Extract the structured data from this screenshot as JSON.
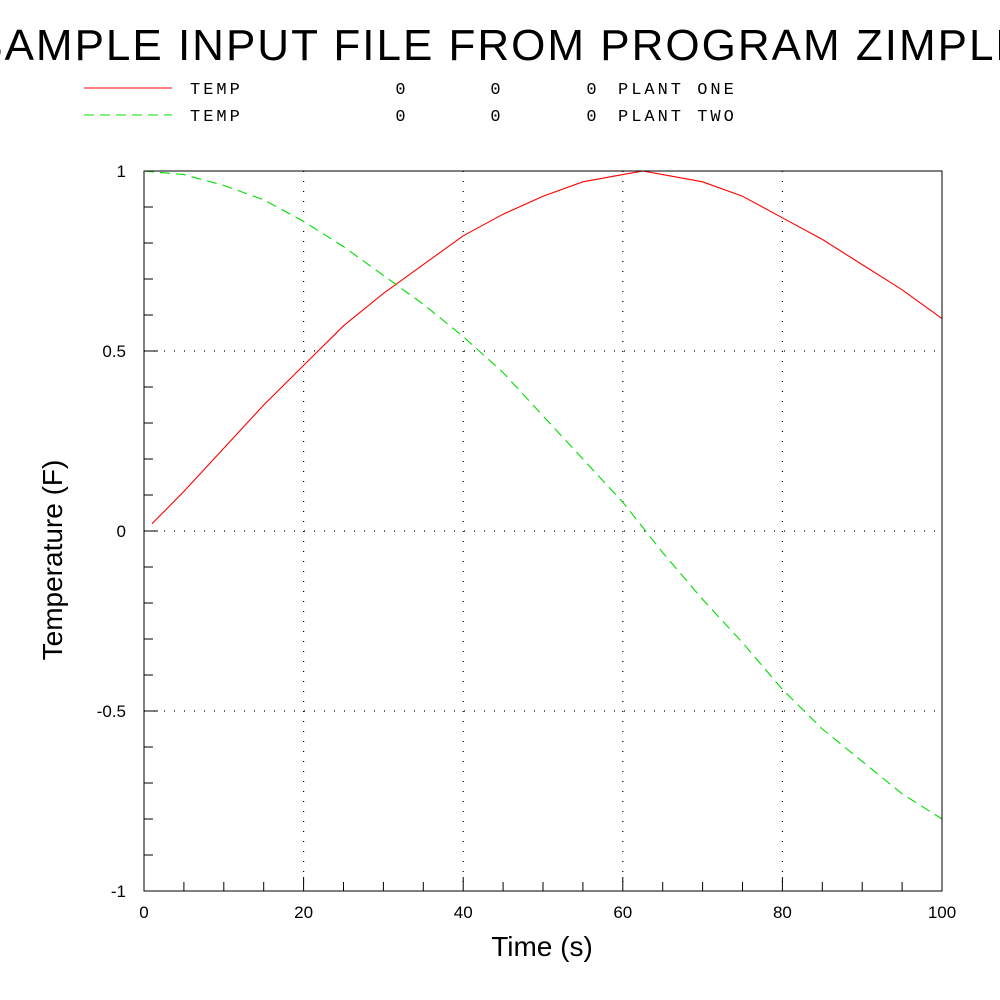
{
  "chart_data": {
    "type": "line",
    "title": "SAMPLE INPUT FILE FROM PROGRAM ZIMPLE",
    "xlabel": "Time  (s)",
    "ylabel": "Temperature  (F)",
    "xlim": [
      0,
      100
    ],
    "ylim": [
      -1,
      1
    ],
    "x_ticks": [
      "0",
      "20",
      "40",
      "60",
      "80",
      "100"
    ],
    "y_ticks": [
      "-1",
      "-0.5",
      "0",
      "0.5",
      "1"
    ],
    "grid": true,
    "legend_position": "top-left",
    "series": [
      {
        "name": "TEMP 0 0 0 PLANT ONE",
        "legend_cols": [
          "TEMP",
          "0",
          "0",
          "0",
          "PLANT ONE"
        ],
        "color": "#ff0000",
        "style": "solid",
        "x": [
          1,
          5,
          10,
          15,
          20,
          25,
          30,
          35,
          40,
          45,
          50,
          55,
          60,
          62.5,
          65,
          70,
          75,
          80,
          85,
          90,
          95,
          100
        ],
        "y": [
          0.02,
          0.11,
          0.23,
          0.35,
          0.46,
          0.57,
          0.66,
          0.74,
          0.82,
          0.88,
          0.93,
          0.97,
          0.99,
          1.0,
          0.99,
          0.97,
          0.93,
          0.87,
          0.81,
          0.74,
          0.67,
          0.59
        ]
      },
      {
        "name": "TEMP 0 0 0 PLANT TWO",
        "legend_cols": [
          "TEMP",
          "0",
          "0",
          "0",
          "PLANT TWO"
        ],
        "color": "#00dd00",
        "style": "dashed",
        "x": [
          0,
          5,
          10,
          15,
          20,
          25,
          30,
          35,
          40,
          45,
          50,
          55,
          60,
          65,
          70,
          75,
          80,
          85,
          90,
          95,
          100
        ],
        "y": [
          1.0,
          0.99,
          0.96,
          0.92,
          0.86,
          0.79,
          0.71,
          0.63,
          0.54,
          0.44,
          0.32,
          0.2,
          0.08,
          -0.06,
          -0.19,
          -0.31,
          -0.44,
          -0.55,
          -0.64,
          -0.73,
          -0.8
        ]
      }
    ]
  }
}
